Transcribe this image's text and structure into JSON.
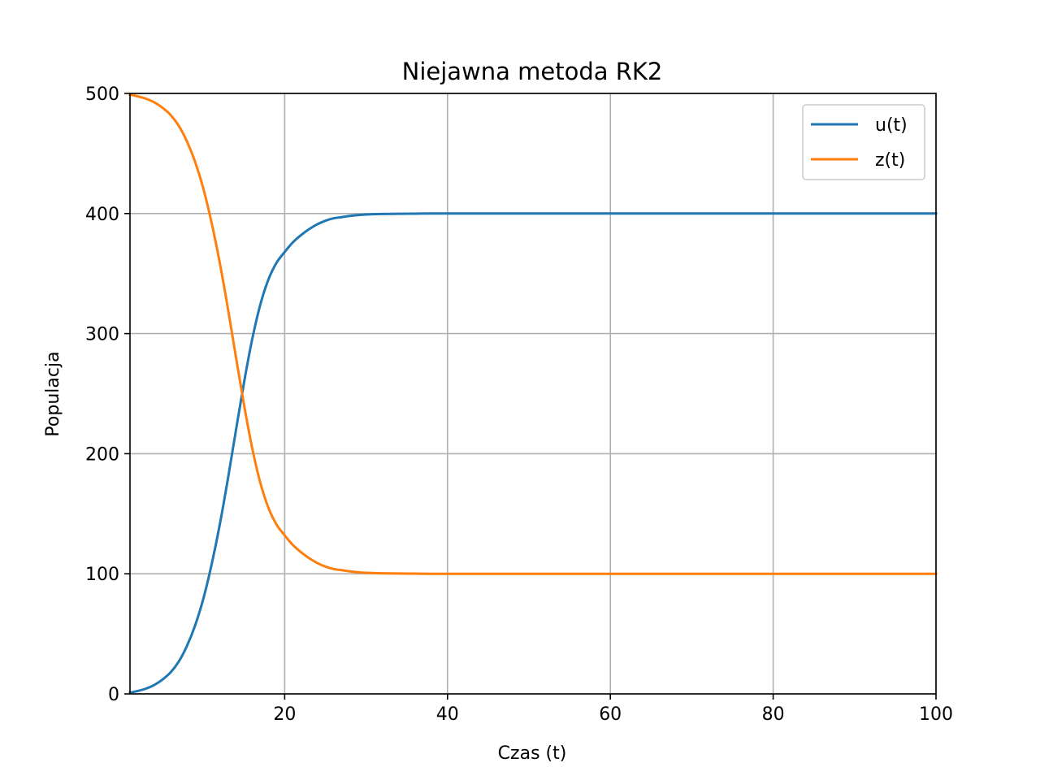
{
  "chart_data": {
    "type": "line",
    "title": "Niejawna metoda RK2",
    "xlabel": "Czas (t)",
    "ylabel": "Populacja",
    "xlim": [
      1,
      100
    ],
    "ylim": [
      0,
      500
    ],
    "xticks": [
      20,
      40,
      60,
      80,
      100
    ],
    "yticks": [
      0,
      100,
      200,
      300,
      400,
      500
    ],
    "xtick_labels": [
      "20",
      "40",
      "60",
      "80",
      "100"
    ],
    "ytick_labels": [
      "0",
      "100",
      "200",
      "300",
      "400",
      "500"
    ],
    "grid": true,
    "legend_position": "top-right",
    "series": [
      {
        "name": "u(t)",
        "color": "#1f77b4",
        "x": [
          1,
          2,
          3,
          4,
          5,
          6,
          7,
          8,
          9,
          10,
          11,
          12,
          13,
          14,
          15,
          16,
          17,
          18,
          19,
          20,
          21,
          22,
          23,
          24,
          25,
          26,
          27,
          28,
          29,
          30,
          32,
          34,
          36,
          38,
          40,
          45,
          50,
          60,
          70,
          80,
          90,
          100
        ],
        "values": [
          1.0,
          2.5,
          4.5,
          7.5,
          12,
          18,
          27,
          40,
          57,
          79,
          107,
          140,
          178,
          219,
          259,
          295,
          324,
          345,
          359,
          368,
          376,
          382,
          387,
          391,
          394,
          396,
          397,
          398,
          398.7,
          399.2,
          399.6,
          399.8,
          399.9,
          400,
          400,
          400,
          400,
          400,
          400,
          400,
          400,
          400
        ]
      },
      {
        "name": "z(t)",
        "color": "#ff7f0e",
        "x": [
          1,
          2,
          3,
          4,
          5,
          6,
          7,
          8,
          9,
          10,
          11,
          12,
          13,
          14,
          15,
          16,
          17,
          18,
          19,
          20,
          21,
          22,
          23,
          24,
          25,
          26,
          27,
          28,
          29,
          30,
          32,
          34,
          36,
          38,
          40,
          45,
          50,
          60,
          70,
          80,
          90,
          100
        ],
        "values": [
          499,
          497.5,
          495.5,
          492.5,
          488,
          482,
          473,
          460,
          443,
          421,
          393,
          360,
          322,
          281,
          241,
          205,
          176,
          155,
          141,
          132,
          124,
          118,
          113,
          109,
          106,
          104,
          103,
          102,
          101.3,
          100.8,
          100.4,
          100.2,
          100.1,
          100,
          100,
          100,
          100,
          100,
          100,
          100,
          100,
          100
        ]
      }
    ]
  }
}
